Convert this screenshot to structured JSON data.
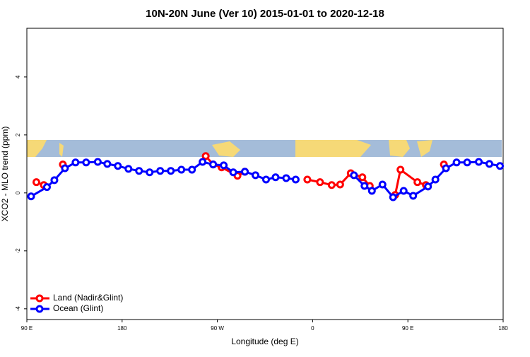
{
  "chart_data": {
    "type": "line",
    "title": "10N-20N June (Ver 10)   2015-01-01 to 2020-12-18",
    "x_label": "Longitude (deg E)",
    "y_label": "XCO2 - MLO trend (ppm)",
    "xlim": [
      90,
      540
    ],
    "ylim": [
      -4.37,
      5.68
    ],
    "xticks": [
      {
        "value": 90,
        "label": "90 E"
      },
      {
        "value": 180,
        "label": "180"
      },
      {
        "value": 270,
        "label": "90 W"
      },
      {
        "value": 360,
        "label": "0"
      },
      {
        "value": 450,
        "label": "90 E"
      },
      {
        "value": 540,
        "label": "180"
      }
    ],
    "yticks": [
      -4,
      -2,
      0,
      2,
      4
    ],
    "legend": "bottom-left",
    "series": [
      {
        "name": "Land (Nadir&Glint)",
        "color": "#ff0000",
        "x": [
          99,
          106,
          null,
          124,
          null,
          259,
          266,
          274,
          289,
          296,
          null,
          355,
          367,
          378,
          386,
          396,
          407,
          414,
          null,
          438,
          443,
          459,
          467,
          null,
          484
        ],
        "values": [
          0.37,
          0.27,
          null,
          0.98,
          null,
          1.27,
          0.98,
          0.88,
          0.59,
          0.73,
          null,
          0.46,
          0.37,
          0.27,
          0.29,
          0.68,
          0.54,
          0.24,
          null,
          -0.07,
          0.8,
          0.37,
          0.27,
          null,
          0.98
        ]
      },
      {
        "name": "Ocean (Glint)",
        "color": "#0000ff",
        "x": [
          94,
          109,
          116,
          126,
          136,
          146,
          157,
          166,
          176,
          186,
          196,
          206,
          216,
          226,
          236,
          246,
          256,
          266,
          276,
          285,
          296,
          306,
          316,
          325,
          335,
          344,
          null,
          399,
          409,
          416,
          426,
          436,
          446,
          455,
          469,
          476,
          486,
          496,
          506,
          517,
          527,
          537
        ],
        "values": [
          -0.12,
          0.2,
          0.44,
          0.85,
          1.05,
          1.05,
          1.07,
          1.0,
          0.93,
          0.83,
          0.76,
          0.71,
          0.76,
          0.76,
          0.8,
          0.8,
          1.07,
          0.98,
          0.95,
          0.71,
          0.73,
          0.61,
          0.46,
          0.54,
          0.51,
          0.46,
          null,
          0.61,
          0.24,
          0.07,
          0.29,
          -0.15,
          0.07,
          -0.1,
          0.22,
          0.46,
          0.85,
          1.05,
          1.05,
          1.07,
          1.0,
          0.93
        ]
      }
    ]
  }
}
